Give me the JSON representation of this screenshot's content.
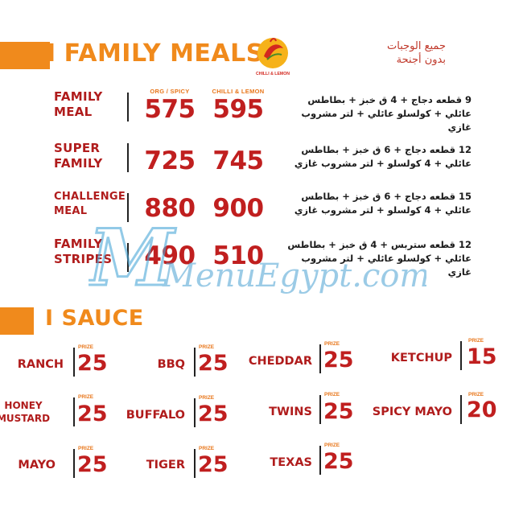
{
  "family_meals": {
    "title": "FAMILY MEALS",
    "pipe": "I",
    "logo_text": "CHILLI & LEMON",
    "arabic_header": [
      "جميع الوجبات",
      "بدون أجنحة"
    ],
    "col_headers": [
      "ORG / SPICY",
      "CHILLI & LEMON"
    ],
    "items": [
      {
        "name": "FAMILY MEAL",
        "price_org": "575",
        "price_chilli": "595",
        "desc": "9 قطعه دجاج + 4 ق خبز + بطاطس عائلي + كولسلو عائلي + لتر مشروب غازي"
      },
      {
        "name": "SUPER FAMILY",
        "price_org": "725",
        "price_chilli": "745",
        "desc": "12 قطعه دجاج + 6 ق خبز + بطاطس عائلي + 4 كولسلو + لتر مشروب غازي"
      },
      {
        "name": "CHALLENGE MEAL",
        "price_org": "880",
        "price_chilli": "900",
        "desc": "15 قطعه دجاج + 6 ق خبز + بطاطس عائلي + 4 كولسلو + لتر مشروب غازي"
      },
      {
        "name": "FAMILY STRIPES",
        "price_org": "490",
        "price_chilli": "510",
        "desc": "12 قطعه ستربس + 4 ق خبز + بطاطس عائلي + كولسلو عائلي + لتر مشروب غازي"
      }
    ]
  },
  "sauce": {
    "title": "SAUCE",
    "pipe": "I",
    "prize_label": "PRIZE",
    "items": [
      {
        "name": "RANCH",
        "price": "25"
      },
      {
        "name": "BBQ",
        "price": "25"
      },
      {
        "name": "CHEDDAR",
        "price": "25"
      },
      {
        "name": "KETCHUP",
        "price": "15"
      },
      {
        "name": "HONEY MUSTARD",
        "price": "25"
      },
      {
        "name": "BUFFALO",
        "price": "25"
      },
      {
        "name": "TWINS",
        "price": "25"
      },
      {
        "name": "SPICY MAYO",
        "price": "20"
      },
      {
        "name": "MAYO",
        "price": "25"
      },
      {
        "name": "TIGER",
        "price": "25"
      },
      {
        "name": "TEXAS",
        "price": "25"
      }
    ]
  },
  "watermark": "MenuEgypt.com"
}
